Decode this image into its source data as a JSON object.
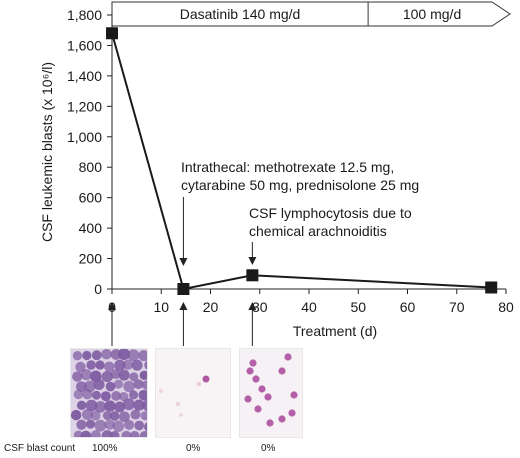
{
  "chart_data": {
    "type": "line",
    "ylabel": "CSF leukemic blasts (x 10⁶/l)",
    "xlabel": "Treatment (d)",
    "xlim": [
      0,
      80
    ],
    "ylim": [
      0,
      1800
    ],
    "x_ticks": [
      "0",
      "10",
      "20",
      "30",
      "40",
      "50",
      "60",
      "70",
      "80"
    ],
    "y_ticks": [
      "0",
      "200",
      "400",
      "600",
      "800",
      "1,000",
      "1,200",
      "1,400",
      "1,600",
      "1,800"
    ],
    "series": [
      {
        "x": [
          0,
          14.5,
          28.5,
          77
        ],
        "y": [
          1680,
          0,
          90,
          10
        ]
      }
    ],
    "dose_bar": {
      "segment1": "Dasatinib 140 mg/d",
      "segment2": "100 mg/d",
      "segment_boundary_day": 52
    },
    "annotations": [
      {
        "line1": "Intrathecal: methotrexate 12.5 mg,",
        "line2": "cytarabine 50 mg, prednisolone 25 mg"
      },
      {
        "line1": "CSF lymphocytosis due to",
        "line2": "chemical arachnoiditis"
      }
    ]
  },
  "micrographs": {
    "row_label": "CSF blast count",
    "items": [
      {
        "day": 0,
        "percent": "100%"
      },
      {
        "day": 14.5,
        "percent": "0%"
      },
      {
        "day": 28.5,
        "percent": "0%"
      }
    ]
  },
  "colors": {
    "line": "#1a1a1a",
    "blast_cell": "#7d5aa0",
    "lymphocyte": "#a8479a"
  }
}
